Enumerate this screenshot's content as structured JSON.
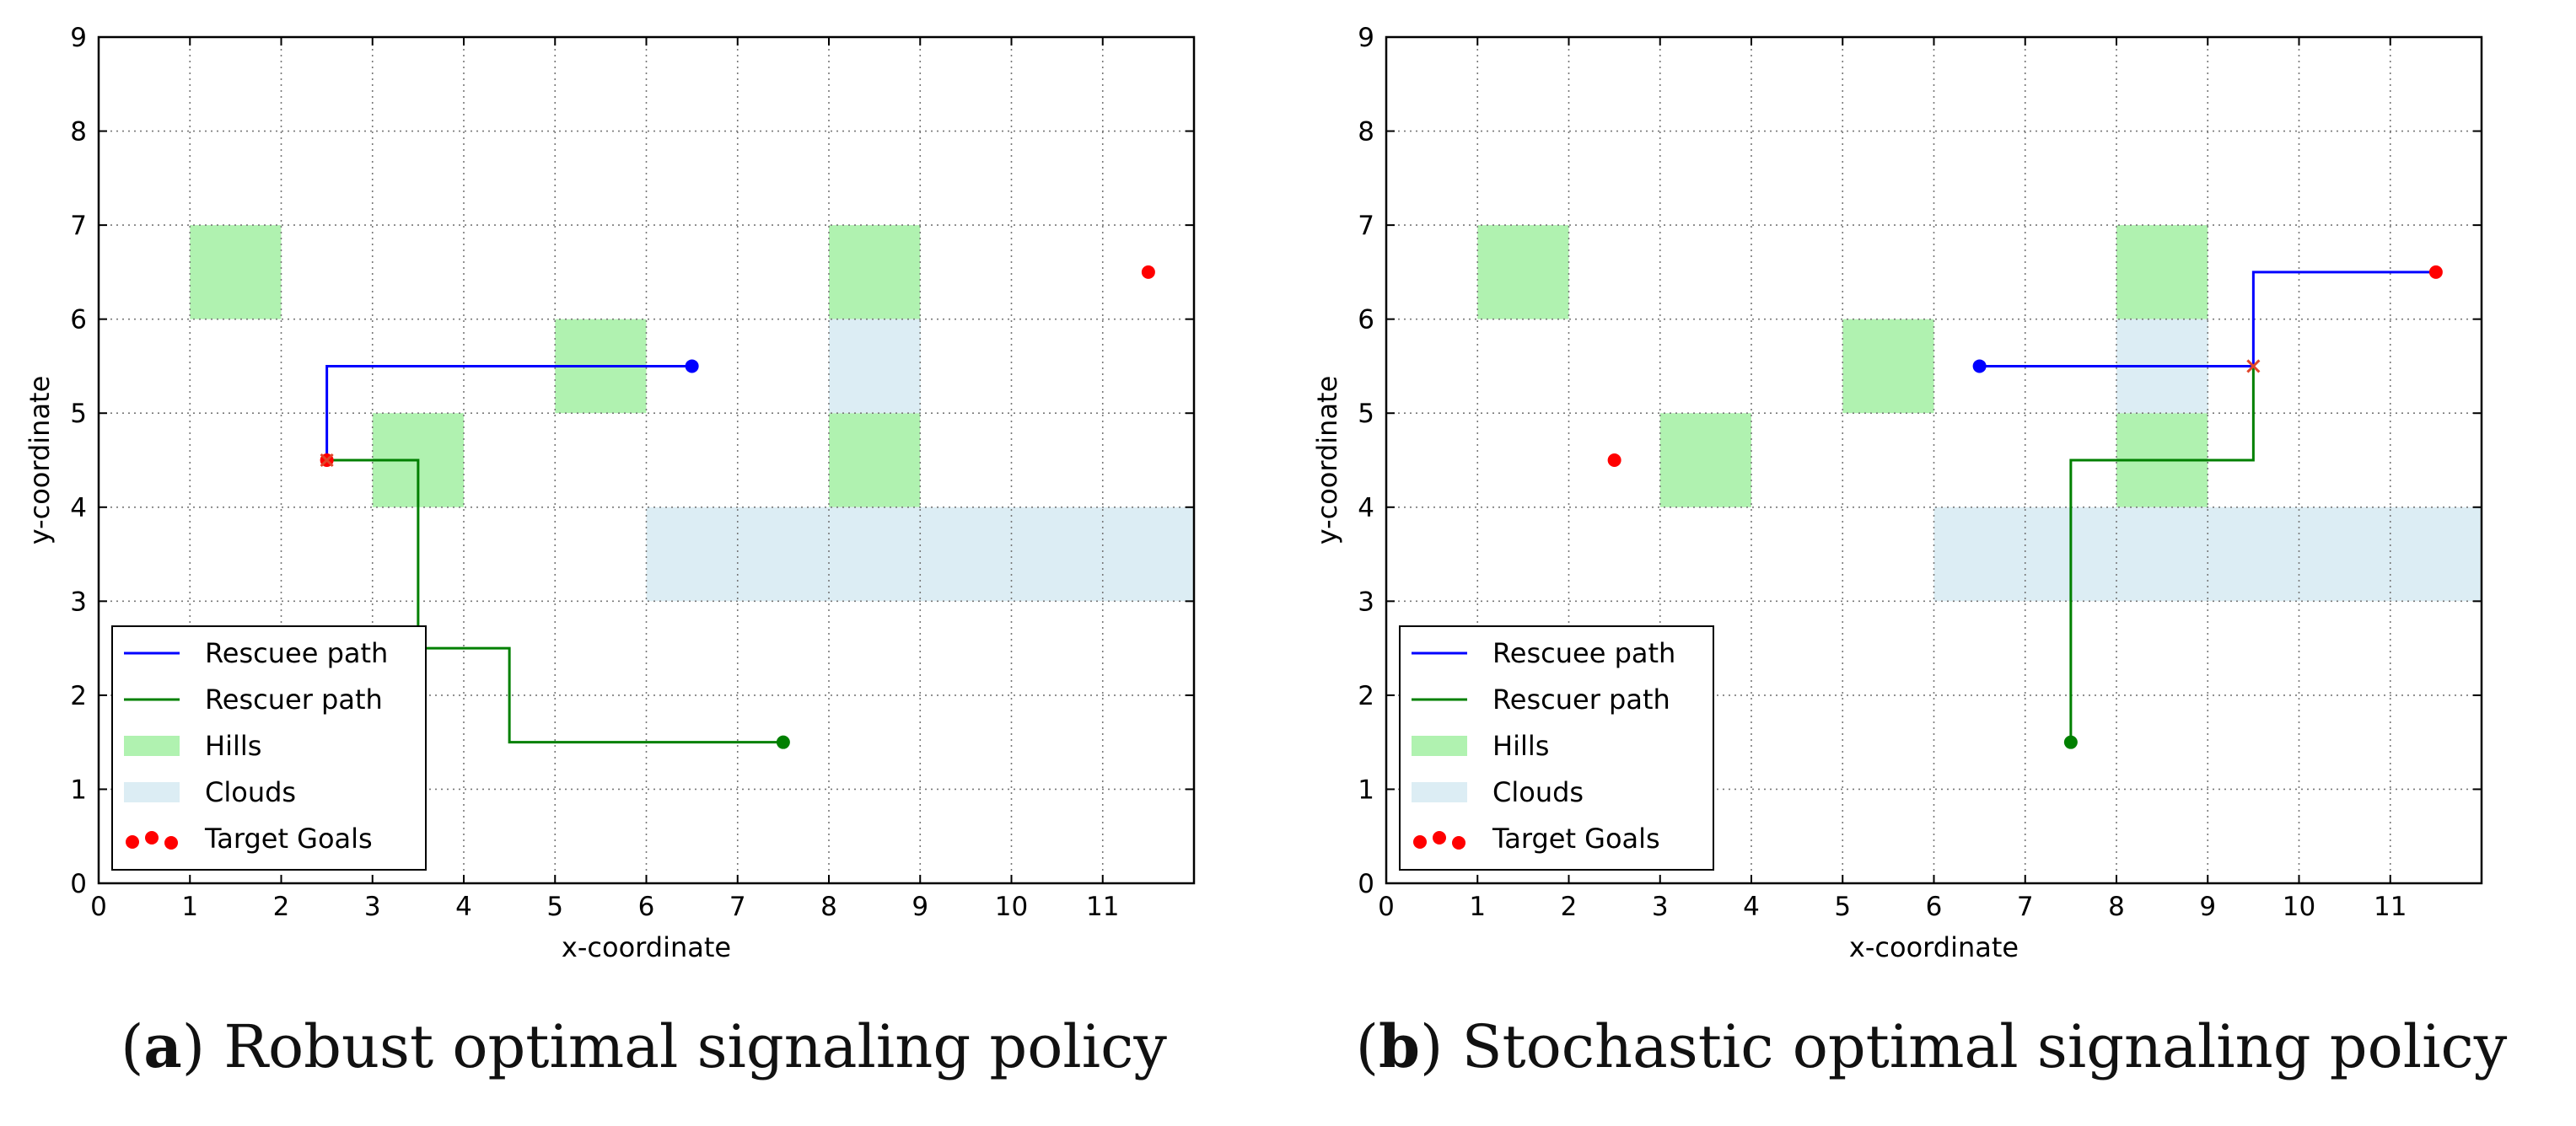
{
  "chart_data": [
    {
      "type": "scatter",
      "panel_letter": "a",
      "title": "Robust optimal signaling policy",
      "xlabel": "x-coordinate",
      "ylabel": "y-coordinate",
      "xlim": [
        0,
        12
      ],
      "ylim": [
        0,
        9
      ],
      "xticks": [
        "0",
        "1",
        "2",
        "3",
        "4",
        "5",
        "6",
        "7",
        "8",
        "9",
        "10",
        "11"
      ],
      "yticks": [
        "0",
        "1",
        "2",
        "3",
        "4",
        "5",
        "6",
        "7",
        "8",
        "9"
      ],
      "grid": true,
      "legend_position": "lower-left",
      "legend": [
        "Rescuee path",
        "Rescuer path",
        "Hills",
        "Clouds",
        "Target Goals"
      ],
      "hills": [
        [
          1,
          6
        ],
        [
          8,
          6
        ],
        [
          5,
          5
        ],
        [
          3,
          4
        ],
        [
          8,
          4
        ]
      ],
      "clouds": [
        [
          8,
          5
        ],
        [
          6,
          3
        ],
        [
          7,
          3
        ],
        [
          8,
          3
        ],
        [
          9,
          3
        ],
        [
          10,
          3
        ],
        [
          11,
          3
        ]
      ],
      "rescuee_path": [
        [
          6.5,
          5.5
        ],
        [
          2.5,
          5.5
        ],
        [
          2.5,
          4.5
        ]
      ],
      "rescuer_path": [
        [
          7.5,
          1.5
        ],
        [
          4.5,
          1.5
        ],
        [
          4.5,
          2.5
        ],
        [
          3.5,
          2.5
        ],
        [
          3.5,
          4.5
        ],
        [
          2.5,
          4.5
        ]
      ],
      "target_goals": [
        [
          11.5,
          6.5
        ],
        [
          2.5,
          4.5
        ]
      ],
      "meeting_point": [
        2.5,
        4.5
      ],
      "colors": {
        "rescuee": "#0000ff",
        "rescuer": "#008000",
        "hills": "#b0f2b0",
        "clouds": "#dcedf4",
        "targets": "#ff0000",
        "meet": "#e0452a"
      }
    },
    {
      "type": "scatter",
      "panel_letter": "b",
      "title": "Stochastic optimal signaling policy",
      "xlabel": "x-coordinate",
      "ylabel": "y-coordinate",
      "xlim": [
        0,
        12
      ],
      "ylim": [
        0,
        9
      ],
      "xticks": [
        "0",
        "1",
        "2",
        "3",
        "4",
        "5",
        "6",
        "7",
        "8",
        "9",
        "10",
        "11"
      ],
      "yticks": [
        "0",
        "1",
        "2",
        "3",
        "4",
        "5",
        "6",
        "7",
        "8",
        "9"
      ],
      "grid": true,
      "legend_position": "lower-left",
      "legend": [
        "Rescuee path",
        "Rescuer path",
        "Hills",
        "Clouds",
        "Target Goals"
      ],
      "hills": [
        [
          1,
          6
        ],
        [
          8,
          6
        ],
        [
          5,
          5
        ],
        [
          3,
          4
        ],
        [
          8,
          4
        ]
      ],
      "clouds": [
        [
          8,
          5
        ],
        [
          6,
          3
        ],
        [
          7,
          3
        ],
        [
          8,
          3
        ],
        [
          9,
          3
        ],
        [
          10,
          3
        ],
        [
          11,
          3
        ]
      ],
      "rescuee_path": [
        [
          6.5,
          5.5
        ],
        [
          9.5,
          5.5
        ],
        [
          9.5,
          6.5
        ],
        [
          11.5,
          6.5
        ]
      ],
      "rescuer_path": [
        [
          7.5,
          1.5
        ],
        [
          7.5,
          4.5
        ],
        [
          9.5,
          4.5
        ],
        [
          9.5,
          5.5
        ]
      ],
      "target_goals": [
        [
          11.5,
          6.5
        ],
        [
          2.5,
          4.5
        ]
      ],
      "meeting_point": [
        9.5,
        5.5
      ],
      "colors": {
        "rescuee": "#0000ff",
        "rescuer": "#008000",
        "hills": "#b0f2b0",
        "clouds": "#dcedf4",
        "targets": "#ff0000",
        "meet": "#e0452a"
      }
    }
  ]
}
